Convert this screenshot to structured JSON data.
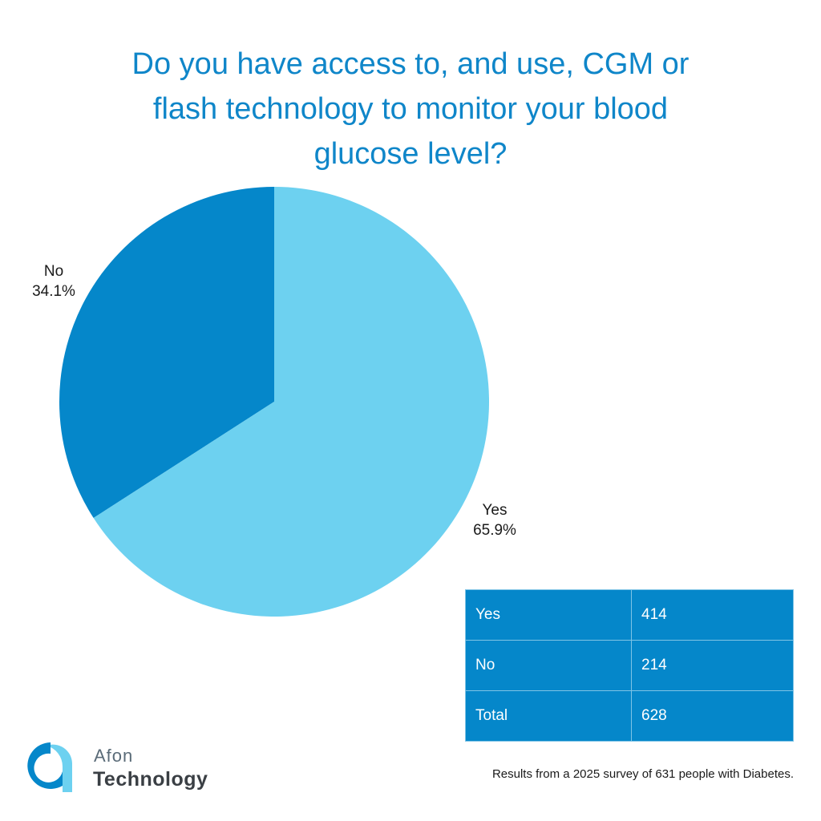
{
  "chart_data": {
    "type": "pie",
    "title_lines": [
      "Do you have access to, and use, CGM or",
      "flash technology to monitor your blood",
      "glucose level?"
    ],
    "slices": [
      {
        "label": "No",
        "value": 34.1,
        "display": "34.1%",
        "color": "#0587ca"
      },
      {
        "label": "Yes",
        "value": 65.9,
        "display": "65.9%",
        "color": "#6dd1f0"
      }
    ],
    "start_angle_deg": 0,
    "direction": "counterclockwise",
    "legend": "none"
  },
  "table": {
    "rows": [
      {
        "label": "Yes",
        "count": "414"
      },
      {
        "label": "No",
        "count": "214"
      },
      {
        "label": "Total",
        "count": "628"
      }
    ]
  },
  "logo": {
    "line1": "Afon",
    "line2": "Technology",
    "colors": {
      "dark": "#0587ca",
      "light": "#6dd1f0"
    }
  },
  "footnote": "Results from a 2025 survey of 631 people with Diabetes."
}
